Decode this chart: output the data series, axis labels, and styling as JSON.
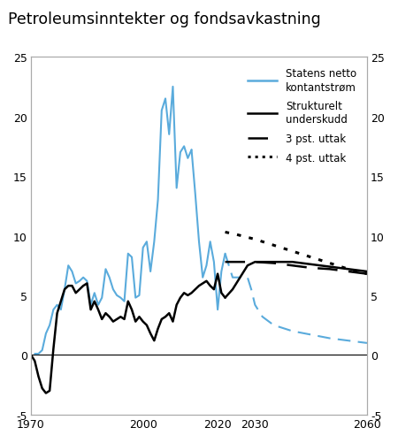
{
  "title": "Petroleumsinntekter og fondsavkastning",
  "xlim": [
    1970,
    2060
  ],
  "ylim": [
    -5,
    25
  ],
  "yticks": [
    -5,
    0,
    5,
    10,
    15,
    20,
    25
  ],
  "xtick_positions": [
    1970,
    1980,
    1990,
    2000,
    2010,
    2020,
    2030,
    2040,
    2050,
    2060
  ],
  "xtick_labels": [
    "1970",
    "",
    "",
    "2000",
    "",
    "2020",
    "2030",
    "",
    "",
    "2060"
  ],
  "blue_color": "#5aabdc",
  "black_color": "#000000",
  "legend_labels": [
    "Statens netto\nkontantstrøm",
    "Strukturelt\nunderskudd",
    "3 pst. uttak",
    "4 pst. uttak"
  ],
  "blue_historical_years": [
    1971,
    1972,
    1973,
    1974,
    1975,
    1976,
    1977,
    1978,
    1979,
    1980,
    1981,
    1982,
    1983,
    1984,
    1985,
    1986,
    1987,
    1988,
    1989,
    1990,
    1991,
    1992,
    1993,
    1994,
    1995,
    1996,
    1997,
    1998,
    1999,
    2000,
    2001,
    2002,
    2003,
    2004,
    2005,
    2006,
    2007,
    2008,
    2009,
    2010,
    2011,
    2012,
    2013
  ],
  "blue_historical_values": [
    0.1,
    0.1,
    0.4,
    1.8,
    2.5,
    3.8,
    4.2,
    3.8,
    5.5,
    7.5,
    7.0,
    6.0,
    6.2,
    6.5,
    6.2,
    4.2,
    5.2,
    4.2,
    4.8,
    7.2,
    6.5,
    5.5,
    5.0,
    4.8,
    4.5,
    8.5,
    8.2,
    4.8,
    5.0,
    9.0,
    9.5,
    7.0,
    9.5,
    13.0,
    20.5,
    21.5,
    18.5,
    22.5,
    14.0,
    17.0,
    17.5,
    16.5,
    17.2
  ],
  "blue_historical2_years": [
    2013,
    2014,
    2015,
    2016,
    2017,
    2018,
    2019,
    2020,
    2021,
    2022
  ],
  "blue_historical2_values": [
    17.2,
    13.5,
    9.5,
    6.5,
    7.5,
    9.5,
    7.8,
    3.8,
    7.0,
    8.5
  ],
  "blue_forecast_years": [
    2022,
    2023,
    2024,
    2025,
    2026,
    2027,
    2028,
    2029,
    2030,
    2032,
    2035,
    2040,
    2045,
    2050,
    2055,
    2060
  ],
  "blue_forecast_values": [
    8.5,
    7.5,
    6.5,
    6.5,
    6.5,
    6.5,
    6.5,
    5.5,
    4.2,
    3.2,
    2.5,
    2.0,
    1.7,
    1.4,
    1.2,
    1.0
  ],
  "black_historical_years": [
    1970,
    1971,
    1972,
    1973,
    1974,
    1975,
    1976,
    1977,
    1978,
    1979,
    1980,
    1981,
    1982,
    1983,
    1984,
    1985,
    1986,
    1987,
    1988,
    1989,
    1990,
    1991,
    1992,
    1993,
    1994,
    1995,
    1996,
    1997,
    1998,
    1999,
    2000,
    2001,
    2002,
    2003,
    2004,
    2005,
    2006,
    2007,
    2008,
    2009,
    2010,
    2011,
    2012,
    2013,
    2014,
    2015,
    2016,
    2017,
    2018,
    2019,
    2020,
    2021,
    2022
  ],
  "black_historical_values": [
    0.0,
    -0.5,
    -1.8,
    -2.8,
    -3.2,
    -3.0,
    0.5,
    3.5,
    4.5,
    5.5,
    5.8,
    5.8,
    5.2,
    5.5,
    5.8,
    6.0,
    3.8,
    4.5,
    3.8,
    3.0,
    3.5,
    3.2,
    2.8,
    3.0,
    3.2,
    3.0,
    4.5,
    3.8,
    2.8,
    3.2,
    2.8,
    2.5,
    1.8,
    1.2,
    2.2,
    3.0,
    3.2,
    3.5,
    2.8,
    4.2,
    4.8,
    5.2,
    5.0,
    5.2,
    5.5,
    5.8,
    6.0,
    6.2,
    5.8,
    5.5,
    6.8,
    5.2,
    4.8
  ],
  "black_forecast_years": [
    2022,
    2024,
    2026,
    2028,
    2030,
    2035,
    2040,
    2045,
    2050,
    2055,
    2060
  ],
  "black_forecast_values": [
    4.8,
    5.5,
    6.5,
    7.5,
    7.8,
    7.8,
    7.8,
    7.6,
    7.4,
    7.2,
    7.0
  ],
  "dashed_years": [
    2022,
    2025,
    2030,
    2035,
    2040,
    2045,
    2050,
    2055,
    2060
  ],
  "dashed_values": [
    7.8,
    7.8,
    7.8,
    7.7,
    7.5,
    7.3,
    7.2,
    7.0,
    6.8
  ],
  "dotted_years": [
    2022,
    2025,
    2030,
    2035,
    2040,
    2045,
    2050,
    2055,
    2060
  ],
  "dotted_values": [
    10.3,
    10.1,
    9.7,
    9.2,
    8.7,
    8.2,
    7.7,
    7.2,
    6.8
  ]
}
